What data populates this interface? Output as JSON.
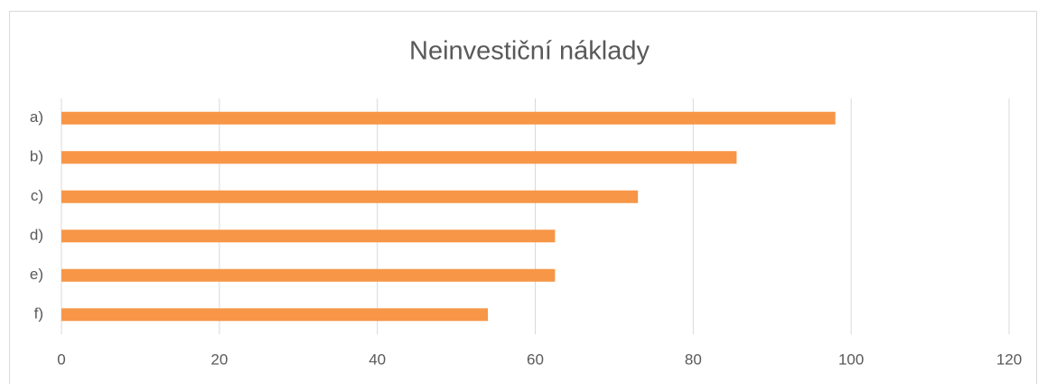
{
  "chart_data": {
    "type": "bar",
    "orientation": "horizontal",
    "title": "Neinvestiční náklady",
    "categories": [
      "a)",
      "b)",
      "c)",
      "d)",
      "e)",
      "f)"
    ],
    "values": [
      98,
      85.5,
      73,
      62.5,
      62.5,
      54
    ],
    "color": "#f79646",
    "xlim": [
      0,
      120
    ],
    "xticks": [
      0,
      20,
      40,
      60,
      80,
      100,
      120
    ],
    "grid": true
  }
}
